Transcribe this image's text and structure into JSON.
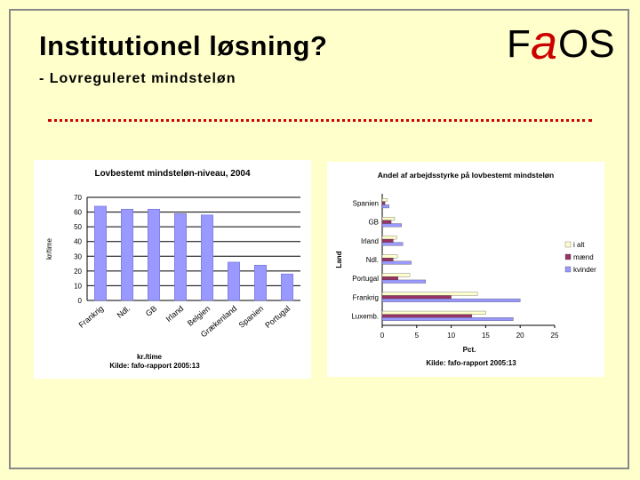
{
  "slide": {
    "title": "Institutionel løsning?",
    "subtitle": "- Lovreguleret mindsteløn",
    "logo": {
      "prefix": "F",
      "middle": "a",
      "suffix": "OS",
      "accent": "#cc0000"
    }
  },
  "colors": {
    "background": "#ffffcc",
    "bar": "#9999ff",
    "bar_outline": "#6666cc",
    "divider": "#cc0000",
    "series_i_alt": "#ffffcc",
    "series_mand": "#993366",
    "series_kvinder": "#9999ff"
  },
  "chart_data": [
    {
      "type": "bar",
      "title": "Lovbestemt mindsteløn-niveau, 2004",
      "xlabel": "kr./time",
      "ylabel": "kr/time",
      "source": "Kilde: fafo-rapport 2005:13",
      "ylim": [
        0,
        70
      ],
      "yticks": [
        "0",
        "10",
        "20",
        "30",
        "40",
        "50",
        "60",
        "70"
      ],
      "categories": [
        "Frankrig",
        "Ndl.",
        "GB",
        "Irland",
        "Belgien",
        "Grækenland",
        "Spanien",
        "Portugal"
      ],
      "values": [
        64,
        62,
        62,
        59,
        58,
        26,
        24,
        18
      ],
      "grid": true
    },
    {
      "type": "bar",
      "orientation": "horizontal",
      "title": "Andel af arbejdsstyrke på lovbestemt mindsteløn",
      "xlabel": "Pct.",
      "ylabel": "Land",
      "source": "Kilde: fafo-rapport 2005:13",
      "xlim": [
        0,
        25
      ],
      "xticks": [
        "0",
        "5",
        "10",
        "15",
        "20",
        "25"
      ],
      "categories": [
        "Spanien",
        "GB",
        "Irland",
        "Ndl.",
        "Portugal",
        "Frankrig",
        "Luxemb."
      ],
      "series": [
        {
          "name": "i alt",
          "values": [
            0.7,
            1.8,
            2.1,
            2.2,
            4,
            13.8,
            15
          ]
        },
        {
          "name": "mænd",
          "values": [
            0.4,
            1.3,
            1.6,
            1.6,
            2.3,
            10,
            13
          ]
        },
        {
          "name": "kvinder",
          "values": [
            1,
            2.8,
            3,
            4.2,
            6.3,
            20,
            19
          ]
        }
      ],
      "legend": "right"
    }
  ]
}
